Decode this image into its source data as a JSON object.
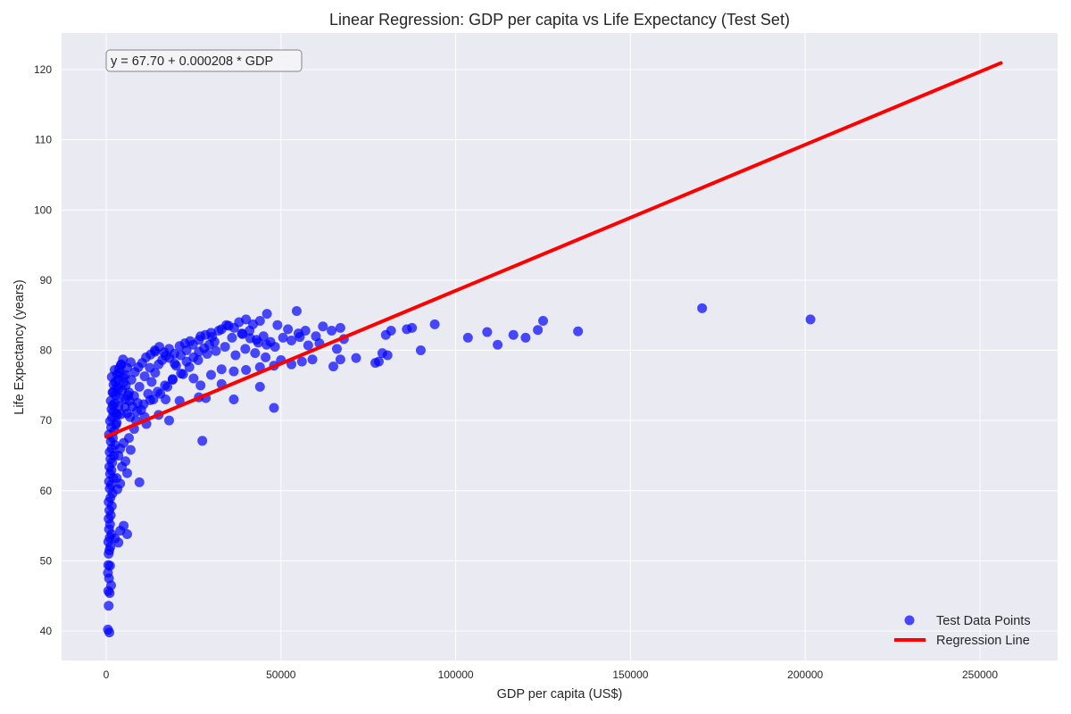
{
  "chart_data": {
    "type": "scatter",
    "title": "Linear Regression: GDP per capita vs Life Expectancy (Test Set)",
    "xlabel": "GDP per capita (US$)",
    "ylabel": "Life Expectancy (years)",
    "xlim": [
      -12800,
      268500
    ],
    "ylim": [
      36.0,
      125.5
    ],
    "x_ticks": [
      0,
      50000,
      100000,
      150000,
      200000,
      250000
    ],
    "x_tick_labels": [
      "0",
      "50000",
      "100000",
      "150000",
      "200000",
      "250000"
    ],
    "y_ticks": [
      40,
      50,
      60,
      70,
      80,
      90,
      100,
      110,
      120
    ],
    "y_tick_labels": [
      "40",
      "50",
      "60",
      "70",
      "80",
      "90",
      "100",
      "110",
      "120"
    ],
    "grid": true,
    "legend_position": "lower right",
    "annotation": "y = 67.70 + 0.000208 * GDP",
    "regression": {
      "name": "Regression Line",
      "intercept": 67.7,
      "slope": 0.000208,
      "x_range": [
        0,
        256000
      ],
      "color": "#ff0000"
    },
    "series": [
      {
        "name": "Test Data Points",
        "color": "#0000ff",
        "points": [
          [
            500,
            40.2
          ],
          [
            900,
            39.8
          ],
          [
            700,
            43.6
          ],
          [
            1000,
            45.4
          ],
          [
            600,
            45.7
          ],
          [
            1400,
            46.5
          ],
          [
            800,
            47.5
          ],
          [
            500,
            48.3
          ],
          [
            1100,
            49.3
          ],
          [
            600,
            49.4
          ],
          [
            700,
            51.0
          ],
          [
            900,
            51.5
          ],
          [
            1200,
            52.0
          ],
          [
            600,
            52.7
          ],
          [
            1000,
            53.3
          ],
          [
            1500,
            53.8
          ],
          [
            800,
            54.5
          ],
          [
            1100,
            55.2
          ],
          [
            700,
            56.0
          ],
          [
            1300,
            56.5
          ],
          [
            900,
            57.2
          ],
          [
            1600,
            57.8
          ],
          [
            700,
            58.4
          ],
          [
            1200,
            59.0
          ],
          [
            1800,
            59.6
          ],
          [
            1000,
            60.3
          ],
          [
            1400,
            60.8
          ],
          [
            800,
            61.3
          ],
          [
            2000,
            61.8
          ],
          [
            1100,
            62.4
          ],
          [
            1500,
            62.9
          ],
          [
            900,
            63.4
          ],
          [
            1700,
            64.0
          ],
          [
            1200,
            64.5
          ],
          [
            2200,
            65.0
          ],
          [
            1000,
            65.5
          ],
          [
            1600,
            66.0
          ],
          [
            2500,
            66.5
          ],
          [
            1300,
            67.0
          ],
          [
            1900,
            67.5
          ],
          [
            800,
            68.0
          ],
          [
            2300,
            68.5
          ],
          [
            1400,
            69.0
          ],
          [
            2800,
            69.4
          ],
          [
            1100,
            69.9
          ],
          [
            1700,
            70.4
          ],
          [
            3200,
            70.8
          ],
          [
            2000,
            71.2
          ],
          [
            1500,
            71.6
          ],
          [
            3600,
            72.0
          ],
          [
            2400,
            72.4
          ],
          [
            1300,
            72.8
          ],
          [
            4000,
            73.2
          ],
          [
            2700,
            73.6
          ],
          [
            1800,
            74.0
          ],
          [
            4500,
            74.3
          ],
          [
            3000,
            74.7
          ],
          [
            2100,
            75.1
          ],
          [
            5000,
            75.4
          ],
          [
            3400,
            75.8
          ],
          [
            1600,
            76.2
          ],
          [
            5500,
            76.5
          ],
          [
            3800,
            76.8
          ],
          [
            2400,
            77.2
          ],
          [
            6000,
            77.5
          ],
          [
            4200,
            77.9
          ],
          [
            7000,
            78.3
          ],
          [
            4800,
            78.7
          ],
          [
            3500,
            74.5
          ],
          [
            6500,
            74.0
          ],
          [
            8000,
            73.5
          ],
          [
            5500,
            73.0
          ],
          [
            9000,
            72.5
          ],
          [
            7500,
            72.0
          ],
          [
            10000,
            71.5
          ],
          [
            6000,
            71.0
          ],
          [
            11000,
            70.5
          ],
          [
            8500,
            70.0
          ],
          [
            12000,
            73.8
          ],
          [
            9500,
            74.8
          ],
          [
            13000,
            75.5
          ],
          [
            11000,
            76.3
          ],
          [
            14000,
            76.8
          ],
          [
            12500,
            77.5
          ],
          [
            15000,
            78.0
          ],
          [
            16000,
            78.6
          ],
          [
            17000,
            79.2
          ],
          [
            14000,
            79.8
          ],
          [
            18000,
            80.2
          ],
          [
            19500,
            79.5
          ],
          [
            21000,
            80.6
          ],
          [
            22500,
            81.0
          ],
          [
            24000,
            81.3
          ],
          [
            20000,
            77.8
          ],
          [
            23000,
            78.4
          ],
          [
            25000,
            79.0
          ],
          [
            26500,
            79.8
          ],
          [
            28000,
            80.3
          ],
          [
            29500,
            80.8
          ],
          [
            31000,
            81.2
          ],
          [
            27000,
            82.0
          ],
          [
            30000,
            82.5
          ],
          [
            33000,
            83.0
          ],
          [
            35000,
            83.5
          ],
          [
            38000,
            84.0
          ],
          [
            40000,
            84.4
          ],
          [
            42000,
            83.7
          ],
          [
            44000,
            84.2
          ],
          [
            46000,
            85.2
          ],
          [
            54500,
            85.6
          ],
          [
            36000,
            81.8
          ],
          [
            39000,
            82.3
          ],
          [
            41000,
            82.8
          ],
          [
            43000,
            81.5
          ],
          [
            45000,
            82.0
          ],
          [
            47000,
            81.2
          ],
          [
            49000,
            83.6
          ],
          [
            52000,
            83.0
          ],
          [
            55000,
            82.4
          ],
          [
            57000,
            82.8
          ],
          [
            60000,
            82.0
          ],
          [
            62000,
            83.4
          ],
          [
            64500,
            82.8
          ],
          [
            67000,
            83.2
          ],
          [
            61000,
            81.0
          ],
          [
            66000,
            80.2
          ],
          [
            68000,
            81.6
          ],
          [
            71500,
            78.9
          ],
          [
            77000,
            78.2
          ],
          [
            79000,
            79.6
          ],
          [
            80000,
            82.2
          ],
          [
            81500,
            82.8
          ],
          [
            86000,
            83.0
          ],
          [
            87500,
            83.2
          ],
          [
            90000,
            80.0
          ],
          [
            94000,
            83.7
          ],
          [
            80500,
            79.3
          ],
          [
            78000,
            78.4
          ],
          [
            65000,
            77.7
          ],
          [
            67000,
            78.7
          ],
          [
            53000,
            78.0
          ],
          [
            56000,
            78.4
          ],
          [
            59000,
            78.7
          ],
          [
            48000,
            77.8
          ],
          [
            50000,
            78.6
          ],
          [
            44000,
            77.6
          ],
          [
            40000,
            77.2
          ],
          [
            36500,
            77.0
          ],
          [
            33000,
            77.3
          ],
          [
            30000,
            76.5
          ],
          [
            27000,
            75.0
          ],
          [
            25000,
            76.0
          ],
          [
            22000,
            76.6
          ],
          [
            19000,
            75.8
          ],
          [
            17500,
            74.8
          ],
          [
            15500,
            73.8
          ],
          [
            13500,
            73.0
          ],
          [
            17000,
            73.0
          ],
          [
            21000,
            72.8
          ],
          [
            26500,
            73.3
          ],
          [
            28500,
            73.2
          ],
          [
            33000,
            75.2
          ],
          [
            36500,
            73.0
          ],
          [
            44000,
            74.8
          ],
          [
            48000,
            71.8
          ],
          [
            27500,
            67.1
          ],
          [
            9500,
            61.2
          ],
          [
            18000,
            70.0
          ],
          [
            15000,
            70.8
          ],
          [
            11500,
            69.5
          ],
          [
            8000,
            68.8
          ],
          [
            6500,
            67.5
          ],
          [
            5000,
            66.8
          ],
          [
            4000,
            66.0
          ],
          [
            7000,
            65.8
          ],
          [
            3500,
            65.0
          ],
          [
            5500,
            64.2
          ],
          [
            4500,
            63.4
          ],
          [
            6000,
            62.5
          ],
          [
            3000,
            61.8
          ],
          [
            4000,
            61.0
          ],
          [
            3200,
            60.2
          ],
          [
            5000,
            55.0
          ],
          [
            4000,
            54.3
          ],
          [
            6000,
            53.8
          ],
          [
            3500,
            52.6
          ],
          [
            2500,
            53.2
          ],
          [
            103500,
            81.8
          ],
          [
            109000,
            82.6
          ],
          [
            112000,
            80.8
          ],
          [
            116500,
            82.2
          ],
          [
            120000,
            81.8
          ],
          [
            123500,
            82.9
          ],
          [
            125000,
            84.2
          ],
          [
            135000,
            82.7
          ],
          [
            170500,
            86.0
          ],
          [
            201500,
            84.4
          ],
          [
            2000,
            74.0
          ],
          [
            2600,
            75.5
          ],
          [
            3100,
            76.6
          ],
          [
            3700,
            77.4
          ],
          [
            4300,
            78.0
          ],
          [
            4900,
            76.2
          ],
          [
            5600,
            75.0
          ],
          [
            6300,
            73.6
          ],
          [
            7200,
            75.8
          ],
          [
            8200,
            76.9
          ],
          [
            9200,
            77.6
          ],
          [
            10300,
            78.2
          ],
          [
            11400,
            79.0
          ],
          [
            12700,
            79.4
          ],
          [
            13900,
            80.0
          ],
          [
            15200,
            80.5
          ],
          [
            16600,
            79.7
          ],
          [
            18100,
            78.9
          ],
          [
            19600,
            78.1
          ],
          [
            21300,
            79.3
          ],
          [
            23000,
            80.0
          ],
          [
            24800,
            80.8
          ],
          [
            26600,
            81.5
          ],
          [
            28400,
            82.2
          ],
          [
            30300,
            81.9
          ],
          [
            32200,
            82.8
          ],
          [
            34400,
            83.6
          ],
          [
            36600,
            83.2
          ],
          [
            38800,
            82.4
          ],
          [
            41200,
            81.7
          ],
          [
            43500,
            81.1
          ],
          [
            45900,
            80.8
          ],
          [
            48300,
            80.5
          ],
          [
            50600,
            81.8
          ],
          [
            53000,
            81.4
          ],
          [
            55400,
            81.9
          ],
          [
            57800,
            80.7
          ],
          [
            6800,
            70.5
          ],
          [
            8800,
            71.3
          ],
          [
            10700,
            72.3
          ],
          [
            12600,
            72.9
          ],
          [
            14700,
            74.1
          ],
          [
            16800,
            75.0
          ],
          [
            19000,
            75.9
          ],
          [
            21400,
            76.7
          ],
          [
            23800,
            77.6
          ],
          [
            26300,
            78.6
          ],
          [
            28900,
            79.5
          ],
          [
            31400,
            79.9
          ],
          [
            34000,
            80.5
          ],
          [
            37000,
            79.3
          ],
          [
            39800,
            80.2
          ],
          [
            42600,
            79.6
          ],
          [
            45600,
            79.0
          ],
          [
            3000,
            69.7
          ],
          [
            4200,
            70.9
          ],
          [
            5400,
            71.9
          ],
          [
            6700,
            72.8
          ],
          [
            1900,
            72.2
          ],
          [
            2800,
            71.0
          ]
        ]
      }
    ]
  },
  "legend": {
    "items": [
      {
        "label": "Test Data Points",
        "marker": "circle",
        "color": "#0000ff"
      },
      {
        "label": "Regression Line",
        "marker": "line",
        "color": "#ff0000"
      }
    ]
  },
  "colors": {
    "plot_background": "#eaeaf2",
    "grid": "#ffffff",
    "scatter": "#0000ff",
    "regression": "#ff0000",
    "text": "#262626"
  }
}
